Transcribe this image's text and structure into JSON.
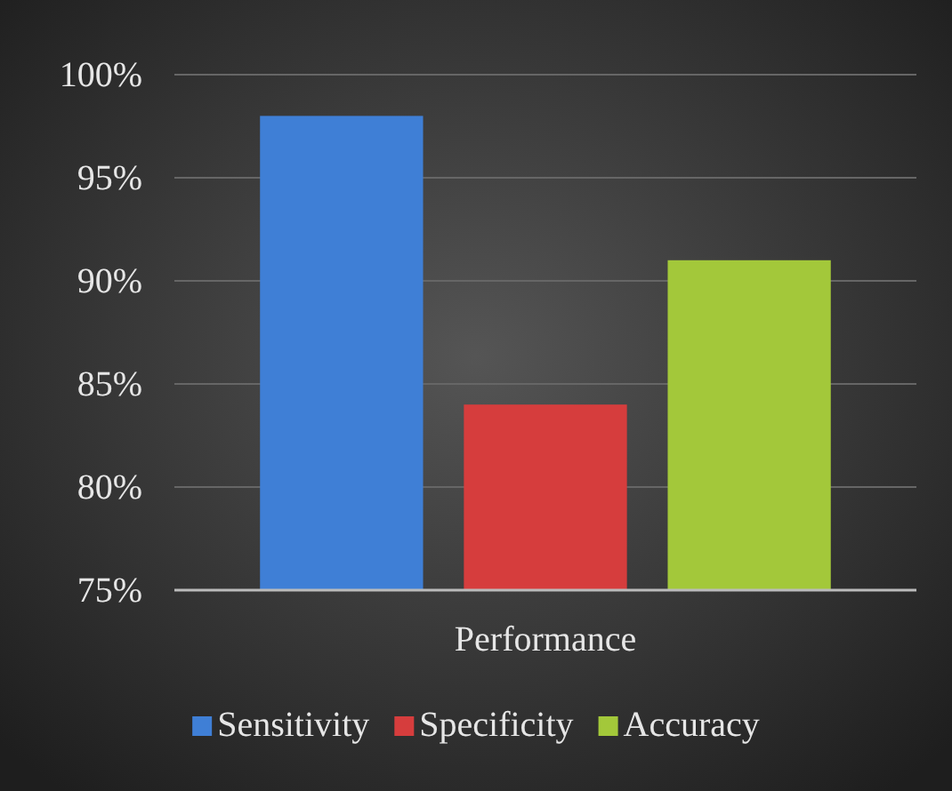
{
  "chart_data": {
    "type": "bar",
    "categories": [
      "Performance"
    ],
    "series": [
      {
        "name": "Sensitivity",
        "color": "#3f7fd6",
        "values": [
          98
        ]
      },
      {
        "name": "Specificity",
        "color": "#d63d3d",
        "values": [
          84
        ]
      },
      {
        "name": "Accuracy",
        "color": "#a3c83a",
        "values": [
          91
        ]
      }
    ],
    "ylim": [
      75,
      100
    ],
    "yticks": [
      {
        "value": 75,
        "label": "75%"
      },
      {
        "value": 80,
        "label": "80%"
      },
      {
        "value": 85,
        "label": "85%"
      },
      {
        "value": 90,
        "label": "90%"
      },
      {
        "value": 95,
        "label": "95%"
      },
      {
        "value": 100,
        "label": "100%"
      }
    ],
    "grid": "y",
    "legend": "bottom"
  }
}
